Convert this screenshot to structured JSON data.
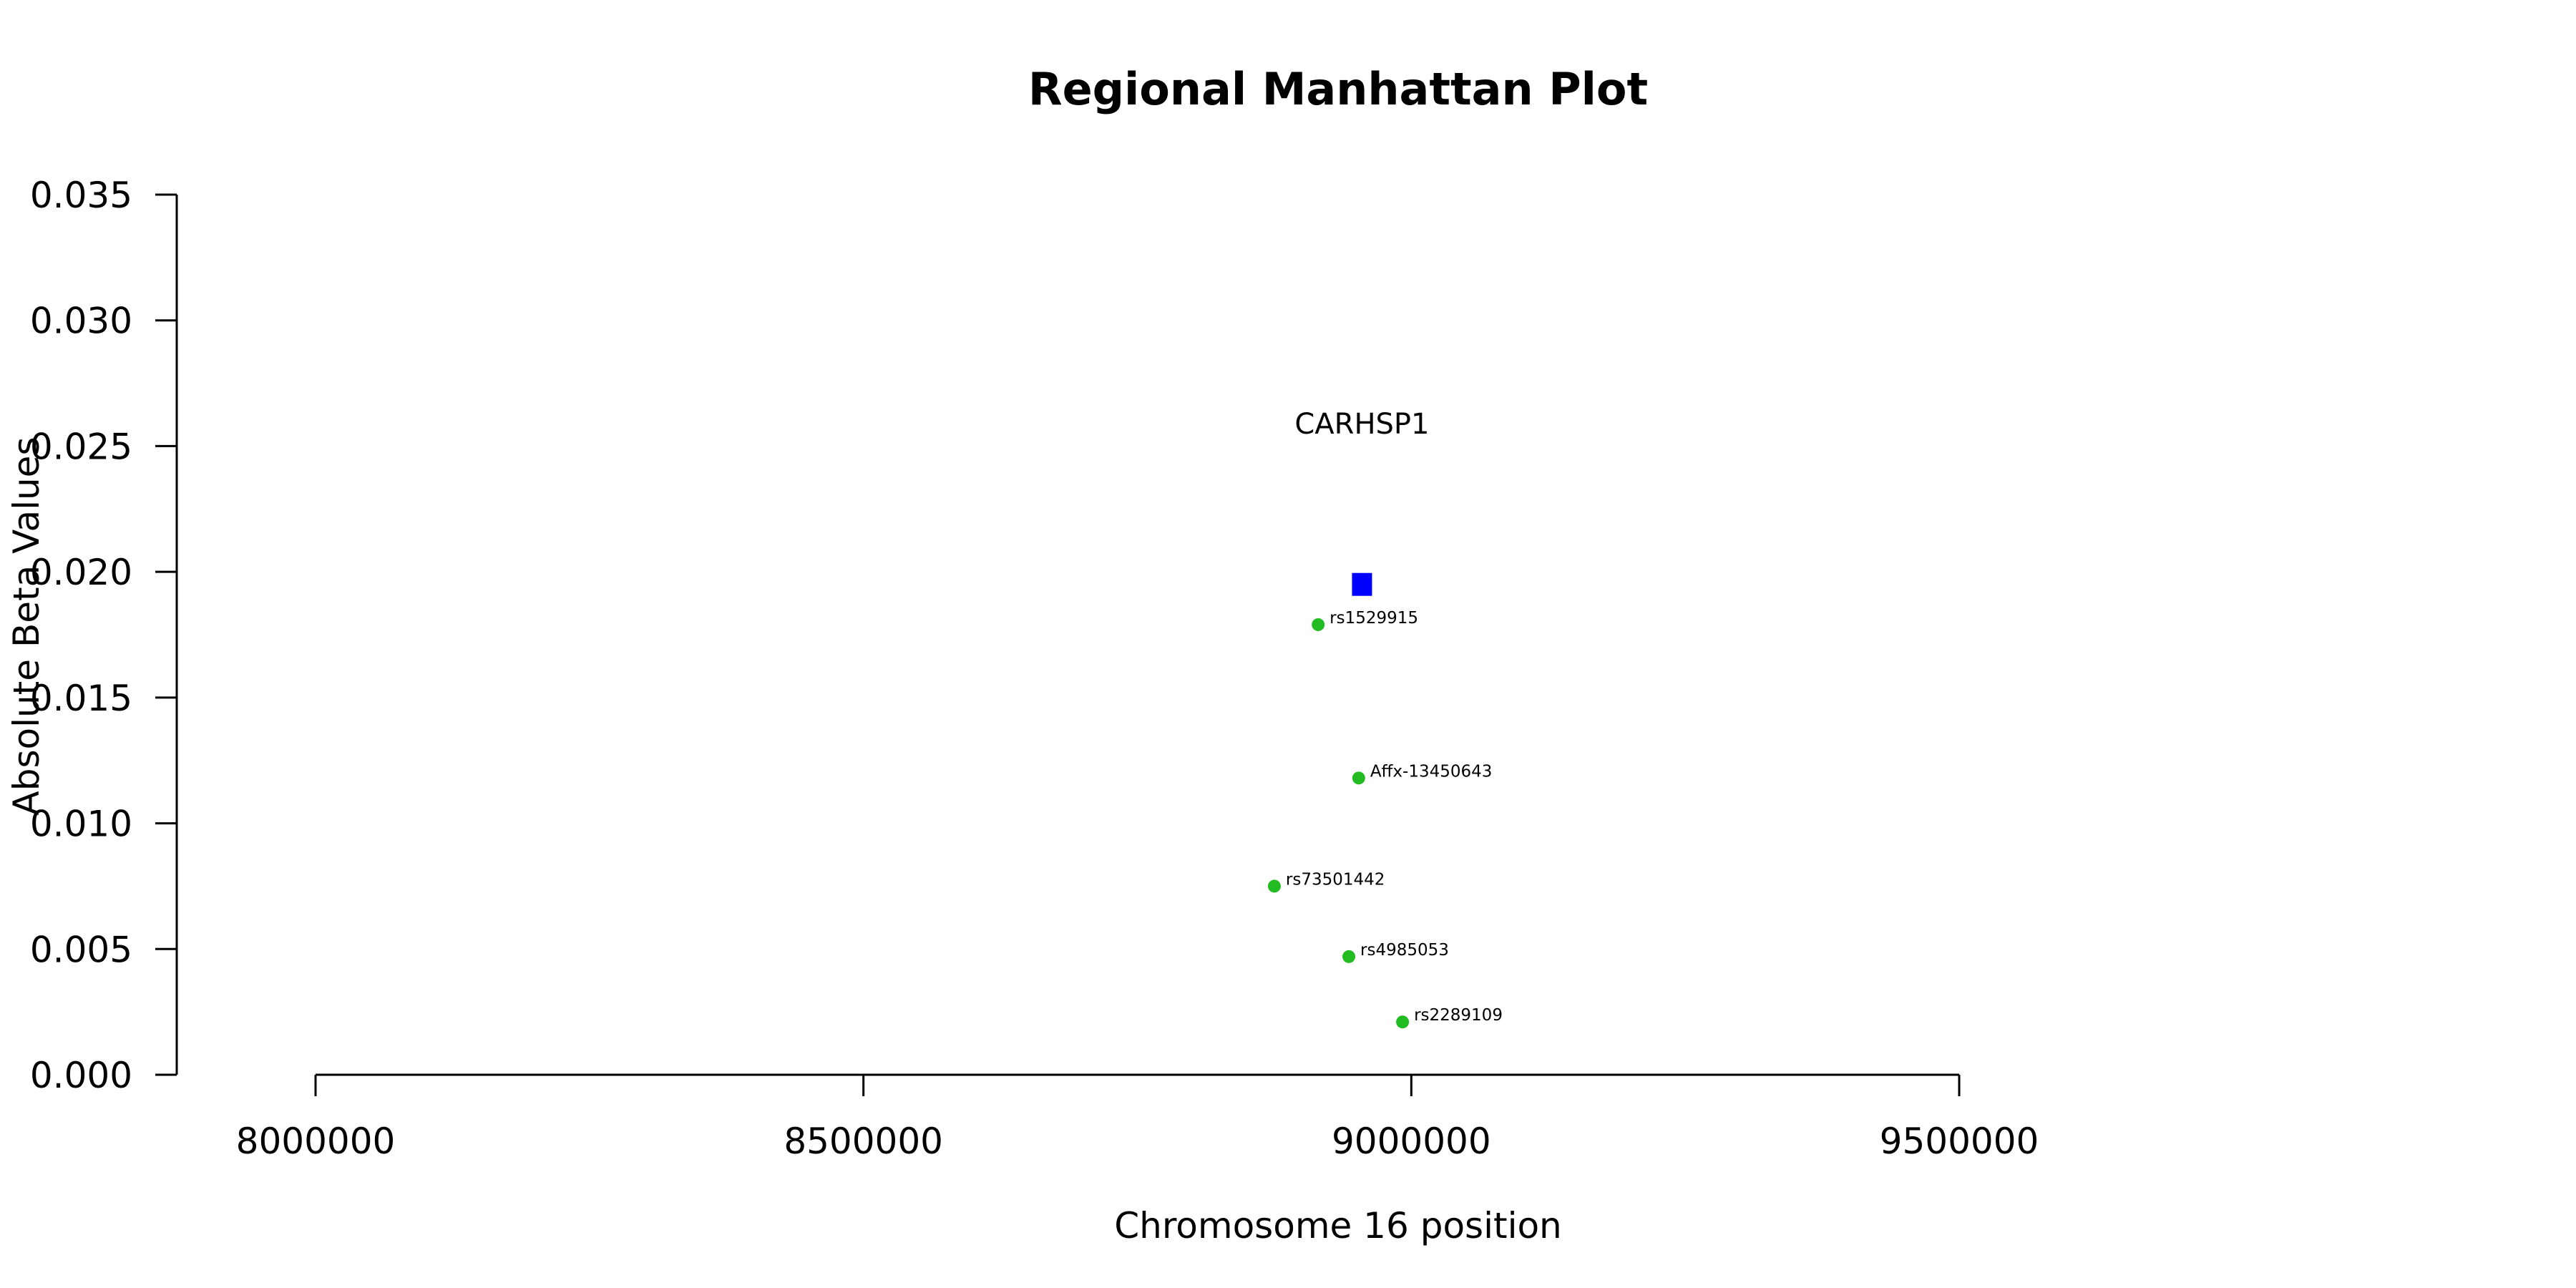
{
  "chart_data": {
    "type": "scatter",
    "title": "Regional Manhattan Plot",
    "xlabel": "Chromosome 16 position",
    "ylabel": "Absolute Beta Values",
    "xlim": [
      8000000,
      9500000
    ],
    "ylim": [
      0,
      0.035
    ],
    "xticks": [
      {
        "value": 8000000,
        "label": "8000000"
      },
      {
        "value": 8500000,
        "label": "8500000"
      },
      {
        "value": 9000000,
        "label": "9000000"
      },
      {
        "value": 9500000,
        "label": "9500000"
      }
    ],
    "yticks": [
      {
        "value": 0.0,
        "label": "0.000"
      },
      {
        "value": 0.005,
        "label": "0.005"
      },
      {
        "value": 0.01,
        "label": "0.010"
      },
      {
        "value": 0.015,
        "label": "0.015"
      },
      {
        "value": 0.02,
        "label": "0.020"
      },
      {
        "value": 0.025,
        "label": "0.025"
      },
      {
        "value": 0.03,
        "label": "0.030"
      },
      {
        "value": 0.035,
        "label": "0.035"
      }
    ],
    "gene": {
      "label": "CARHSP1",
      "x": 8955000,
      "y": 0.0195,
      "label_y": 0.0259,
      "color": "#0000ff"
    },
    "points": [
      {
        "label": "rs1529915",
        "x": 8915000,
        "y": 0.0179,
        "color": "#22bb22"
      },
      {
        "label": "Affx-13450643",
        "x": 8952000,
        "y": 0.0118,
        "color": "#22bb22"
      },
      {
        "label": "rs73501442",
        "x": 8875000,
        "y": 0.0075,
        "color": "#22bb22"
      },
      {
        "label": "rs4985053",
        "x": 8943000,
        "y": 0.0047,
        "color": "#22bb22"
      },
      {
        "label": "rs2289109",
        "x": 8992000,
        "y": 0.0021,
        "color": "#22bb22"
      }
    ]
  }
}
